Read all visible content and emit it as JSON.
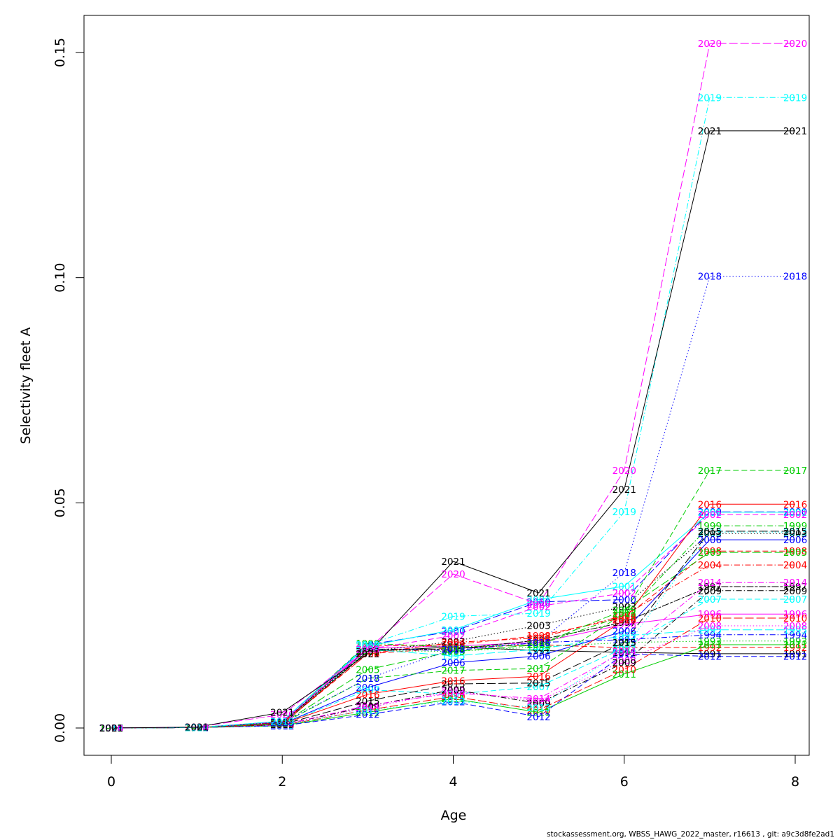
{
  "footer": "stockassessment.org, WBSS_HAWG_2022_master, r16613 , git: a9c3d8fe2ad1",
  "chart_data": {
    "type": "line",
    "title": "",
    "xlabel": "Age",
    "ylabel": "Selectivity fleet A",
    "xlim": [
      -0.3,
      8.2
    ],
    "ylim": [
      -0.0062,
      0.1587
    ],
    "xticks": [
      0,
      2,
      4,
      6,
      8
    ],
    "xtick_labels": [
      "0",
      "2",
      "4",
      "6",
      "8"
    ],
    "yticks": [
      0.0,
      0.05,
      0.1,
      0.15
    ],
    "ytick_labels": [
      "0.00",
      "0.05",
      "0.10",
      "0.15"
    ],
    "grid": false,
    "legend": "none (series labelled inline with year at each age)",
    "x": [
      0,
      1,
      2,
      3,
      4,
      5,
      6,
      7,
      8
    ],
    "series": [
      {
        "name": "1991",
        "color": "#000000",
        "dash": "solid",
        "values": [
          0,
          0.0001,
          0.0008,
          0.017,
          0.018,
          0.0172,
          0.0168,
          0.0165,
          0.0165
        ]
      },
      {
        "name": "1992",
        "color": "#FF0000",
        "dash": "dashed",
        "values": [
          0,
          0.0001,
          0.0009,
          0.0165,
          0.0178,
          0.0185,
          0.0178,
          0.0179,
          0.0179
        ]
      },
      {
        "name": "1993",
        "color": "#00CD00",
        "dash": "dotted",
        "values": [
          0,
          0.0001,
          0.001,
          0.0172,
          0.017,
          0.018,
          0.019,
          0.0193,
          0.0193
        ]
      },
      {
        "name": "1994",
        "color": "#0000FF",
        "dash": "dotdash",
        "values": [
          0,
          0.0001,
          0.0011,
          0.0175,
          0.0172,
          0.019,
          0.0196,
          0.0207,
          0.0207
        ]
      },
      {
        "name": "1995",
        "color": "#00FFFF",
        "dash": "longdash",
        "values": [
          0,
          0.0001,
          0.0011,
          0.0175,
          0.016,
          0.0175,
          0.0205,
          0.0218,
          0.0218
        ]
      },
      {
        "name": "1996",
        "color": "#FF00FF",
        "dash": "solid",
        "values": [
          0,
          0.0001,
          0.0012,
          0.0178,
          0.0182,
          0.019,
          0.023,
          0.0253,
          0.0253
        ]
      },
      {
        "name": "1997",
        "color": "#000000",
        "dash": "twodash",
        "values": [
          0,
          0.0001,
          0.0012,
          0.0175,
          0.0175,
          0.0195,
          0.0235,
          0.0314,
          0.0314
        ]
      },
      {
        "name": "1998",
        "color": "#FF0000",
        "dash": "dashed",
        "values": [
          0,
          0.0001,
          0.0013,
          0.0182,
          0.0185,
          0.0205,
          0.0245,
          0.0393,
          0.0393
        ]
      },
      {
        "name": "1999",
        "color": "#00CD00",
        "dash": "dotdash",
        "values": [
          0,
          0.0001,
          0.0014,
          0.0188,
          0.018,
          0.0185,
          0.025,
          0.0449,
          0.0449
        ]
      },
      {
        "name": "2000",
        "color": "#0000FF",
        "dash": "longdash",
        "values": [
          0,
          0.0001,
          0.0015,
          0.0185,
          0.0215,
          0.028,
          0.0285,
          0.048,
          0.048
        ]
      },
      {
        "name": "2001",
        "color": "#00FFFF",
        "dash": "solid",
        "values": [
          0,
          0.0001,
          0.0015,
          0.0182,
          0.0218,
          0.0285,
          0.0315,
          0.0479,
          0.0479
        ]
      },
      {
        "name": "2002",
        "color": "#FF00FF",
        "dash": "dashed",
        "values": [
          0,
          0.0001,
          0.0014,
          0.0175,
          0.0205,
          0.027,
          0.03,
          0.0474,
          0.0474
        ]
      },
      {
        "name": "2003",
        "color": "#000000",
        "dash": "dotted",
        "values": [
          0,
          0.0001,
          0.0013,
          0.017,
          0.0192,
          0.0228,
          0.027,
          0.0432,
          0.0432
        ]
      },
      {
        "name": "2004",
        "color": "#FF0000",
        "dash": "dotdash",
        "values": [
          0,
          0.0001,
          0.0012,
          0.0165,
          0.019,
          0.02,
          0.025,
          0.0362,
          0.0362
        ]
      },
      {
        "name": "2005",
        "color": "#00CD00",
        "dash": "longdash",
        "values": [
          0,
          0.0001,
          0.001,
          0.013,
          0.017,
          0.0185,
          0.0262,
          0.039,
          0.039
        ]
      },
      {
        "name": "2006",
        "color": "#0000FF",
        "dash": "solid",
        "values": [
          0,
          0.0001,
          0.0009,
          0.009,
          0.0145,
          0.016,
          0.0215,
          0.0418,
          0.0418
        ]
      },
      {
        "name": "2007",
        "color": "#00FFFF",
        "dash": "dashed",
        "values": [
          0,
          0.0001,
          0.0008,
          0.0085,
          0.0075,
          0.0092,
          0.0178,
          0.0286,
          0.0286
        ]
      },
      {
        "name": "2008",
        "color": "#FF00FF",
        "dash": "dotted",
        "values": [
          0,
          0.0001,
          0.0007,
          0.0045,
          0.0082,
          0.006,
          0.015,
          0.0227,
          0.0227
        ]
      },
      {
        "name": "2009",
        "color": "#000000",
        "dash": "dotdash",
        "values": [
          0,
          0.0001,
          0.0007,
          0.0048,
          0.0085,
          0.0055,
          0.0145,
          0.0305,
          0.0305
        ]
      },
      {
        "name": "2010",
        "color": "#FF0000",
        "dash": "longdash",
        "values": [
          0,
          0.0001,
          0.0006,
          0.004,
          0.007,
          0.004,
          0.013,
          0.0244,
          0.0244
        ]
      },
      {
        "name": "2011",
        "color": "#00CD00",
        "dash": "solid",
        "values": [
          0,
          0.0001,
          0.0005,
          0.0035,
          0.0065,
          0.0035,
          0.012,
          0.0185,
          0.0185
        ]
      },
      {
        "name": "2012",
        "color": "#0000FF",
        "dash": "dashed",
        "values": [
          0,
          0.0001,
          0.0005,
          0.003,
          0.0058,
          0.0025,
          0.0165,
          0.0159,
          0.0159
        ]
      },
      {
        "name": "2013",
        "color": "#00FFFF",
        "dash": "dotted",
        "values": [
          0,
          0.0001,
          0.0006,
          0.004,
          0.006,
          0.0045,
          0.0175,
          0.0435,
          0.0435
        ]
      },
      {
        "name": "2014",
        "color": "#FF00FF",
        "dash": "dotdash",
        "values": [
          0,
          0.0001,
          0.0007,
          0.005,
          0.0078,
          0.0065,
          0.017,
          0.0323,
          0.0323
        ]
      },
      {
        "name": "2015",
        "color": "#000000",
        "dash": "longdash",
        "values": [
          0,
          0.0001,
          0.0008,
          0.006,
          0.0098,
          0.01,
          0.019,
          0.0437,
          0.0437
        ]
      },
      {
        "name": "2016",
        "color": "#FF0000",
        "dash": "solid",
        "values": [
          0,
          0.0001,
          0.0009,
          0.0075,
          0.0105,
          0.0115,
          0.024,
          0.0497,
          0.0497
        ]
      },
      {
        "name": "2017",
        "color": "#00CD00",
        "dash": "dashed",
        "values": [
          0,
          0.0001,
          0.001,
          0.011,
          0.0128,
          0.0132,
          0.0255,
          0.0572,
          0.0572
        ]
      },
      {
        "name": "2018",
        "color": "#0000FF",
        "dash": "dotted",
        "values": [
          0,
          0.0001,
          0.0012,
          0.011,
          0.0175,
          0.019,
          0.0345,
          0.1003,
          0.1003
        ]
      },
      {
        "name": "2019",
        "color": "#00FFFF",
        "dash": "dotdash",
        "values": [
          0,
          0.0001,
          0.0015,
          0.0185,
          0.0248,
          0.0255,
          0.048,
          0.14,
          0.14
        ]
      },
      {
        "name": "2020",
        "color": "#FF00FF",
        "dash": "longdash",
        "values": [
          0,
          0.0002,
          0.003,
          0.0175,
          0.0342,
          0.0275,
          0.0572,
          0.152,
          0.152
        ]
      },
      {
        "name": "2021",
        "color": "#000000",
        "dash": "solid",
        "values": [
          0,
          0.0002,
          0.0035,
          0.0165,
          0.037,
          0.03,
          0.053,
          0.1326,
          0.1326
        ]
      }
    ]
  }
}
